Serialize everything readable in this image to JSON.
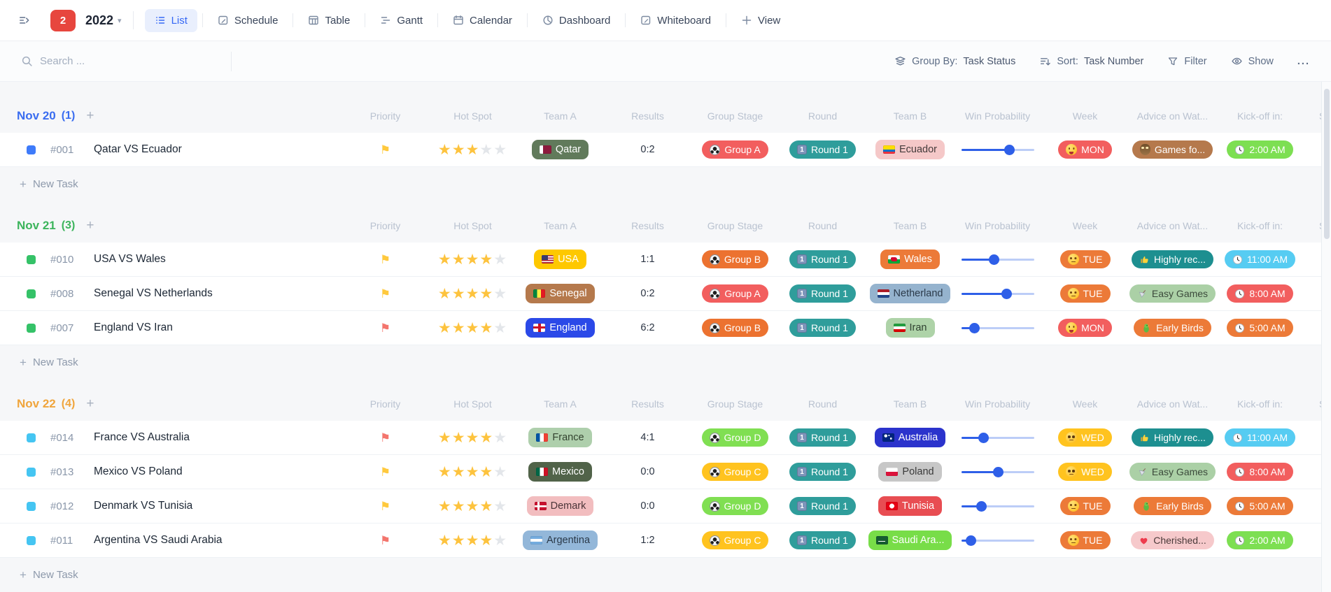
{
  "toolbar": {
    "badge": "2",
    "title": "2022",
    "views": [
      {
        "label": "List",
        "icon": "list-icon",
        "active": true
      },
      {
        "label": "Schedule",
        "icon": "schedule-icon",
        "active": false
      },
      {
        "label": "Table",
        "icon": "table-icon",
        "active": false
      },
      {
        "label": "Gantt",
        "icon": "gantt-icon",
        "active": false
      },
      {
        "label": "Calendar",
        "icon": "calendar-icon",
        "active": false
      },
      {
        "label": "Dashboard",
        "icon": "dashboard-icon",
        "active": false
      },
      {
        "label": "Whiteboard",
        "icon": "whiteboard-icon",
        "active": false
      }
    ],
    "add_view_label": "View"
  },
  "filter_bar": {
    "search_placeholder": "Search ...",
    "group_by_label": "Group By:",
    "group_by_value": "Task Status",
    "sort_label": "Sort:",
    "sort_value": "Task Number",
    "filter_label": "Filter",
    "show_label": "Show",
    "more_label": "..."
  },
  "list": {
    "columns": [
      "Priority",
      "Hot Spot",
      "Team A",
      "Results",
      "Group Stage",
      "Round",
      "Team B",
      "Win Probability",
      "Week",
      "Advice on Wat...",
      "Kick-off in:",
      "S"
    ],
    "new_task_label": "New Task",
    "colors": {
      "priority_yellow": "#ffc93d",
      "priority_red": "#f3756d",
      "star_filled": "#fdc33e",
      "star_empty": "#e3e6ea",
      "slider_fill": "#2e5fe8",
      "slider_track": "#bccdf7",
      "round_pill": "#2f9d9b"
    },
    "groups": [
      {
        "title": "Nov 20",
        "count": "(1)",
        "title_color": "#3a6df0",
        "status_color": "#3e7bfa",
        "tasks": [
          {
            "id": "#001",
            "name": "Qatar VS Ecuador",
            "priority": "yellow",
            "stars": 3,
            "team_a": {
              "label": "Qatar",
              "flag": "qatar",
              "bg": "#617a5b",
              "fg": "#ffffff"
            },
            "results": "0:2",
            "group_stage": {
              "label": "Group A",
              "bg": "#f25e5e",
              "icon": "soccer-ball-icon"
            },
            "round": {
              "label": "Round 1",
              "bg": "#2f9d9b",
              "icon": "keycap-1-icon"
            },
            "team_b": {
              "label": "Ecuador",
              "flag": "ecuador",
              "bg": "#f5c8c8",
              "fg": "#433a3a"
            },
            "win_probability": 66,
            "week": {
              "label": "MON",
              "bg": "#f25e5e",
              "icon": "zany-face-icon"
            },
            "advice": {
              "label": "Games fo...",
              "bg": "#b5794c",
              "fg": "#ffffff",
              "icon": "owl-icon"
            },
            "kickoff": {
              "label": "2:00 AM",
              "bg": "#7ddf52",
              "fg": "#ffffff",
              "icon": "clock-icon"
            }
          }
        ]
      },
      {
        "title": "Nov 21",
        "count": "(3)",
        "title_color": "#3cb45c",
        "status_color": "#35c268",
        "tasks": [
          {
            "id": "#010",
            "name": "USA VS Wales",
            "priority": "yellow",
            "stars": 4,
            "team_a": {
              "label": "USA",
              "flag": "usa",
              "bg": "#fec800",
              "fg": "#ffffff"
            },
            "results": "1:1",
            "group_stage": {
              "label": "Group B",
              "bg": "#ec7230",
              "icon": "soccer-ball-icon"
            },
            "round": {
              "label": "Round 1",
              "bg": "#2f9d9b",
              "icon": "keycap-1-icon"
            },
            "team_b": {
              "label": "Wales",
              "flag": "wales",
              "bg": "#ec7a38",
              "fg": "#ffffff"
            },
            "win_probability": 45,
            "week": {
              "label": "TUE",
              "bg": "#ec7a38",
              "icon": "neutral-face-icon"
            },
            "advice": {
              "label": "Highly rec...",
              "bg": "#1d8f90",
              "fg": "#ffffff",
              "icon": "thumbs-up-icon"
            },
            "kickoff": {
              "label": "11:00 AM",
              "bg": "#56ccf2",
              "fg": "#ffffff",
              "icon": "clock-icon"
            }
          },
          {
            "id": "#008",
            "name": "Senegal VS Netherlands",
            "priority": "yellow",
            "stars": 4,
            "team_a": {
              "label": "Senegal",
              "flag": "senegal",
              "bg": "#b5794c",
              "fg": "#ffffff"
            },
            "results": "0:2",
            "group_stage": {
              "label": "Group A",
              "bg": "#f25e5e",
              "icon": "soccer-ball-icon"
            },
            "round": {
              "label": "Round 1",
              "bg": "#2f9d9b",
              "icon": "keycap-1-icon"
            },
            "team_b": {
              "label": "Netherland",
              "flag": "netherlands",
              "bg": "#95b3ce",
              "fg": "#2b3a4a"
            },
            "win_probability": 62,
            "week": {
              "label": "TUE",
              "bg": "#ec7a38",
              "icon": "neutral-face-icon"
            },
            "advice": {
              "label": "Easy Games",
              "bg": "#abd0a6",
              "fg": "#3b4a3b",
              "icon": "toy-icon"
            },
            "kickoff": {
              "label": "8:00 AM",
              "bg": "#f25e5e",
              "fg": "#ffffff",
              "icon": "clock-icon"
            }
          },
          {
            "id": "#007",
            "name": "England VS Iran",
            "priority": "red",
            "stars": 4,
            "team_a": {
              "label": "England",
              "flag": "england",
              "bg": "#2b49e8",
              "fg": "#ffffff"
            },
            "results": "6:2",
            "group_stage": {
              "label": "Group B",
              "bg": "#ec7230",
              "icon": "soccer-ball-icon"
            },
            "round": {
              "label": "Round 1",
              "bg": "#2f9d9b",
              "icon": "keycap-1-icon"
            },
            "team_b": {
              "label": "Iran",
              "flag": "iran",
              "bg": "#aed3a8",
              "fg": "#2f4030"
            },
            "win_probability": 18,
            "week": {
              "label": "MON",
              "bg": "#f25e5e",
              "icon": "zany-face-icon"
            },
            "advice": {
              "label": "Early Birds",
              "bg": "#ec7a38",
              "fg": "#ffffff",
              "icon": "parrot-icon"
            },
            "kickoff": {
              "label": "5:00 AM",
              "bg": "#ec7a38",
              "fg": "#ffffff",
              "icon": "clock-icon"
            }
          }
        ]
      },
      {
        "title": "Nov 22",
        "count": "(4)",
        "title_color": "#f0a53c",
        "status_color": "#45c5f2",
        "tasks": [
          {
            "id": "#014",
            "name": "France VS Australia",
            "priority": "red",
            "stars": 4,
            "team_a": {
              "label": "France",
              "flag": "france",
              "bg": "#aecfac",
              "fg": "#33432f"
            },
            "results": "4:1",
            "group_stage": {
              "label": "Group D",
              "bg": "#80df52",
              "icon": "soccer-ball-icon"
            },
            "round": {
              "label": "Round 1",
              "bg": "#2f9d9b",
              "icon": "keycap-1-icon"
            },
            "team_b": {
              "label": "Australia",
              "flag": "australia",
              "bg": "#2b33cc",
              "fg": "#ffffff"
            },
            "win_probability": 30,
            "week": {
              "label": "WED",
              "bg": "#ffc31f",
              "icon": "pleading-face-icon"
            },
            "advice": {
              "label": "Highly rec...",
              "bg": "#1d8f90",
              "fg": "#ffffff",
              "icon": "thumbs-up-icon"
            },
            "kickoff": {
              "label": "11:00 AM",
              "bg": "#56ccf2",
              "fg": "#ffffff",
              "icon": "clock-icon"
            }
          },
          {
            "id": "#013",
            "name": "Mexico VS Poland",
            "priority": "yellow",
            "stars": 4,
            "team_a": {
              "label": "Mexico",
              "flag": "mexico",
              "bg": "#516349",
              "fg": "#ffffff"
            },
            "results": "0:0",
            "group_stage": {
              "label": "Group C",
              "bg": "#ffc31f",
              "icon": "soccer-ball-icon"
            },
            "round": {
              "label": "Round 1",
              "bg": "#2f9d9b",
              "icon": "keycap-1-icon"
            },
            "team_b": {
              "label": "Poland",
              "flag": "poland",
              "bg": "#c7c7c7",
              "fg": "#3a3a3a"
            },
            "win_probability": 50,
            "week": {
              "label": "WED",
              "bg": "#ffc31f",
              "icon": "pleading-face-icon"
            },
            "advice": {
              "label": "Easy Games",
              "bg": "#abd0a6",
              "fg": "#3b4a3b",
              "icon": "toy-icon"
            },
            "kickoff": {
              "label": "8:00 AM",
              "bg": "#f25e5e",
              "fg": "#ffffff",
              "icon": "clock-icon"
            }
          },
          {
            "id": "#012",
            "name": "Denmark VS Tunisia",
            "priority": "yellow",
            "stars": 4,
            "team_a": {
              "label": "Demark",
              "flag": "denmark",
              "bg": "#f2bdbf",
              "fg": "#4a3438"
            },
            "results": "0:0",
            "group_stage": {
              "label": "Group D",
              "bg": "#80df52",
              "icon": "soccer-ball-icon"
            },
            "round": {
              "label": "Round 1",
              "bg": "#2f9d9b",
              "icon": "keycap-1-icon"
            },
            "team_b": {
              "label": "Tunisia",
              "flag": "tunisia",
              "bg": "#e84d52",
              "fg": "#ffffff"
            },
            "win_probability": 27,
            "week": {
              "label": "TUE",
              "bg": "#ec7a38",
              "icon": "neutral-face-icon"
            },
            "advice": {
              "label": "Early Birds",
              "bg": "#ec7a38",
              "fg": "#ffffff",
              "icon": "parrot-icon"
            },
            "kickoff": {
              "label": "5:00 AM",
              "bg": "#ec7a38",
              "fg": "#ffffff",
              "icon": "clock-icon"
            }
          },
          {
            "id": "#011",
            "name": "Argentina VS Saudi Arabia",
            "priority": "red",
            "stars": 4,
            "team_a": {
              "label": "Argentina",
              "flag": "argentina",
              "bg": "#93b7d9",
              "fg": "#2b3a4a"
            },
            "results": "1:2",
            "group_stage": {
              "label": "Group C",
              "bg": "#ffc31f",
              "icon": "soccer-ball-icon"
            },
            "round": {
              "label": "Round 1",
              "bg": "#2f9d9b",
              "icon": "keycap-1-icon"
            },
            "team_b": {
              "label": "Saudi Ara...",
              "flag": "saudi",
              "bg": "#78dd48",
              "fg": "#ffffff"
            },
            "win_probability": 13,
            "week": {
              "label": "TUE",
              "bg": "#ec7a38",
              "icon": "neutral-face-icon"
            },
            "advice": {
              "label": "Cherished...",
              "bg": "#f6c9cb",
              "fg": "#4a3a3a",
              "icon": "heart-icon"
            },
            "kickoff": {
              "label": "2:00 AM",
              "bg": "#7ddf52",
              "fg": "#ffffff",
              "icon": "clock-icon"
            }
          }
        ]
      }
    ]
  }
}
